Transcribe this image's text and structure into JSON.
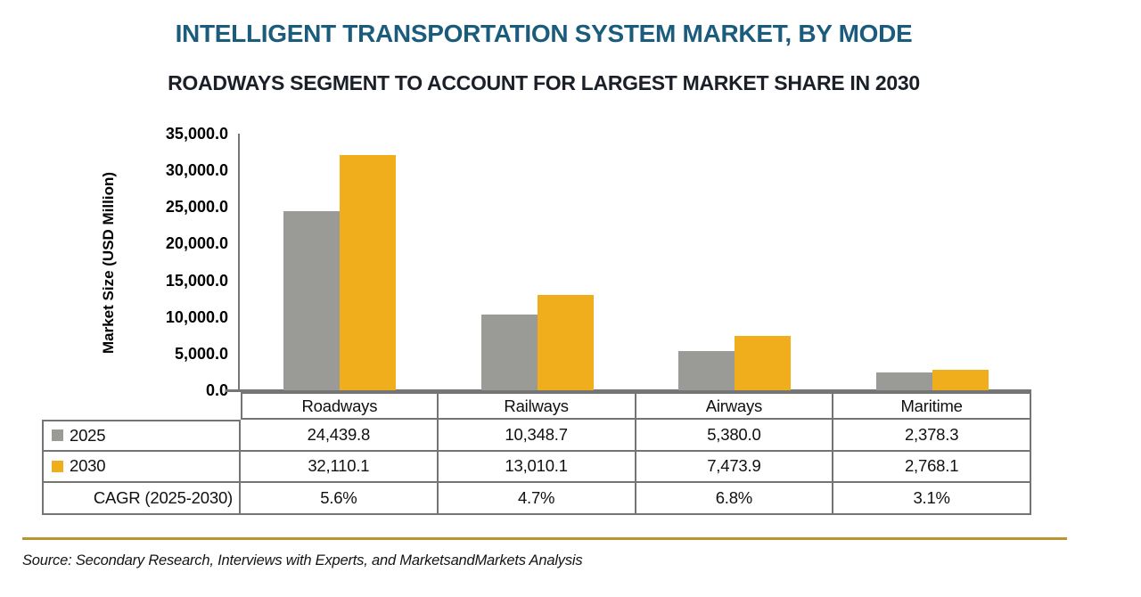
{
  "title": "INTELLIGENT TRANSPORTATION SYSTEM MARKET, BY MODE",
  "subtitle": "ROADWAYS SEGMENT TO ACCOUNT FOR LARGEST MARKET SHARE IN 2030",
  "source_note": "Source: Secondary Research, Interviews with Experts, and MarketsandMarkets Analysis",
  "colors": {
    "title": "#1B5C7C",
    "subtitle": "#1A1F28",
    "bar_2025": "#9A9A96",
    "bar_2030": "#F0AE1C",
    "axis": "#757575",
    "table_border": "#747474",
    "gold_rule": "#B9962F"
  },
  "chart_data": {
    "type": "bar",
    "title": "INTELLIGENT TRANSPORTATION SYSTEM MARKET, BY MODE",
    "subtitle": "ROADWAYS SEGMENT TO ACCOUNT FOR LARGEST MARKET SHARE IN 2030",
    "categories": [
      "Roadways",
      "Railways",
      "Airways",
      "Maritime"
    ],
    "series": [
      {
        "name": "2025",
        "color": "#9A9A96",
        "values": [
          24439.8,
          10348.7,
          5380.0,
          2378.3
        ],
        "labels": [
          "24,439.8",
          "10,348.7",
          "5,380.0",
          "2,378.3"
        ]
      },
      {
        "name": "2030",
        "color": "#F0AE1C",
        "values": [
          32110.1,
          13010.1,
          7473.9,
          2768.1
        ],
        "labels": [
          "32,110.1",
          "13,010.1",
          "7,473.9",
          "2,768.1"
        ]
      }
    ],
    "cagr_row": {
      "label": "CAGR (2025-2030)",
      "values": [
        "5.6%",
        "4.7%",
        "6.8%",
        "3.1%"
      ]
    },
    "xlabel": "",
    "ylabel": "Market Size (USD Million)",
    "ylim": [
      0,
      35000
    ],
    "ytick_step": 5000,
    "ytick_labels": [
      "0.0",
      "5,000.0",
      "10,000.0",
      "15,000.0",
      "20,000.0",
      "25,000.0",
      "30,000.0",
      "35,000.0"
    ],
    "grid": false,
    "legend_position": "table-left"
  }
}
